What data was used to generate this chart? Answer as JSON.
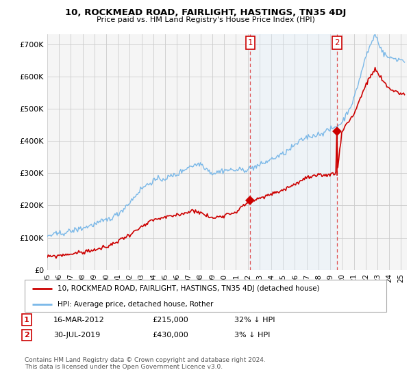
{
  "title": "10, ROCKMEAD ROAD, FAIRLIGHT, HASTINGS, TN35 4DJ",
  "subtitle": "Price paid vs. HM Land Registry's House Price Index (HPI)",
  "ylabel_ticks": [
    "£0",
    "£100K",
    "£200K",
    "£300K",
    "£400K",
    "£500K",
    "£600K",
    "£700K"
  ],
  "ylim": [
    0,
    730000
  ],
  "xlim_start": 1995.0,
  "xlim_end": 2025.5,
  "hpi_color": "#7ab8e8",
  "hpi_fill_color": "#ddeeff",
  "price_color": "#cc0000",
  "marker_color": "#cc0000",
  "sale1_year": 2012.21,
  "sale1_price": 215000,
  "sale2_year": 2019.58,
  "sale2_price": 430000,
  "legend_property": "10, ROCKMEAD ROAD, FAIRLIGHT, HASTINGS, TN35 4DJ (detached house)",
  "legend_hpi": "HPI: Average price, detached house, Rother",
  "note1_label": "1",
  "note1_date": "16-MAR-2012",
  "note1_price": "£215,000",
  "note1_pct": "32% ↓ HPI",
  "note2_label": "2",
  "note2_date": "30-JUL-2019",
  "note2_price": "£430,000",
  "note2_pct": "3% ↓ HPI",
  "footer": "Contains HM Land Registry data © Crown copyright and database right 2024.\nThis data is licensed under the Open Government Licence v3.0.",
  "grid_color": "#cccccc",
  "bg_color": "#ffffff",
  "plot_bg": "#f5f5f5"
}
